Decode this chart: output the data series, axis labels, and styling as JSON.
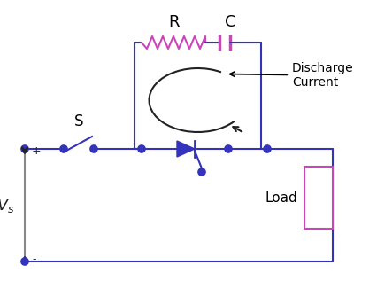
{
  "bg_color": "#ffffff",
  "wire_color": "#3333bb",
  "resistor_color": "#cc44bb",
  "capacitor_color": "#cc44bb",
  "load_color": "#cc44bb",
  "arrow_color": "#000000",
  "label_color": "#000000",
  "vs_wire_color": "#888888",
  "label_R": "R",
  "label_C": "C",
  "label_S": "S",
  "label_Load": "Load",
  "label_Discharge": "Discharge\nCurrent",
  "label_plus": "+",
  "label_minus": "-"
}
